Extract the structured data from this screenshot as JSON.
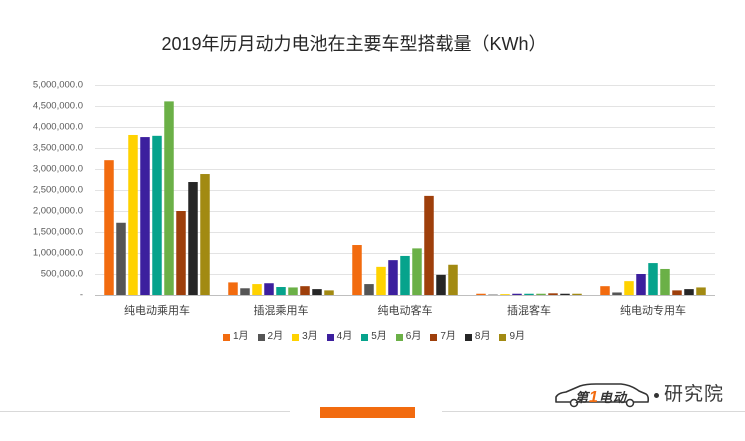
{
  "chart_data": {
    "type": "bar",
    "title": "2019年历月动力电池在主要车型搭载量（KWh）",
    "categories": [
      "纯电动乘用车",
      "插混乘用车",
      "纯电动客车",
      "插混客车",
      "纯电动专用车"
    ],
    "series": [
      {
        "name": "1月",
        "color": "#F26B0F",
        "values": [
          3210000,
          300000,
          1190000,
          30000,
          210000
        ]
      },
      {
        "name": "2月",
        "color": "#555555",
        "values": [
          1720000,
          160000,
          260000,
          10000,
          60000
        ]
      },
      {
        "name": "3月",
        "color": "#FFD200",
        "values": [
          3810000,
          260000,
          670000,
          20000,
          330000
        ]
      },
      {
        "name": "4月",
        "color": "#3C1F9E",
        "values": [
          3760000,
          280000,
          830000,
          30000,
          500000
        ]
      },
      {
        "name": "5月",
        "color": "#06A38C",
        "values": [
          3790000,
          190000,
          930000,
          30000,
          760000
        ]
      },
      {
        "name": "6月",
        "color": "#6BB047",
        "values": [
          4610000,
          180000,
          1110000,
          30000,
          620000
        ]
      },
      {
        "name": "7月",
        "color": "#9E3F0B",
        "values": [
          2000000,
          210000,
          2360000,
          40000,
          110000
        ]
      },
      {
        "name": "8月",
        "color": "#262626",
        "values": [
          2690000,
          140000,
          480000,
          30000,
          140000
        ]
      },
      {
        "name": "9月",
        "color": "#A28A12",
        "values": [
          2880000,
          110000,
          720000,
          30000,
          180000
        ]
      }
    ],
    "ylim": [
      0,
      5000000
    ],
    "yticks": [
      0,
      500000,
      1000000,
      1500000,
      2000000,
      2500000,
      3000000,
      3500000,
      4000000,
      4500000,
      5000000
    ],
    "ytick_labels": [
      "-",
      "500,000.0",
      "1,000,000.0",
      "1,500,000.0",
      "2,000,000.0",
      "2,500,000.0",
      "3,000,000.0",
      "3,500,000.0",
      "4,000,000.0",
      "4,500,000.0",
      "5,000,000.0"
    ],
    "grid": true,
    "legend": "bottom-center"
  },
  "logo": {
    "brand_parts": [
      "第",
      "1",
      "电动"
    ],
    "division": "研究院"
  },
  "theme": {
    "accent": "#F26B0F"
  }
}
